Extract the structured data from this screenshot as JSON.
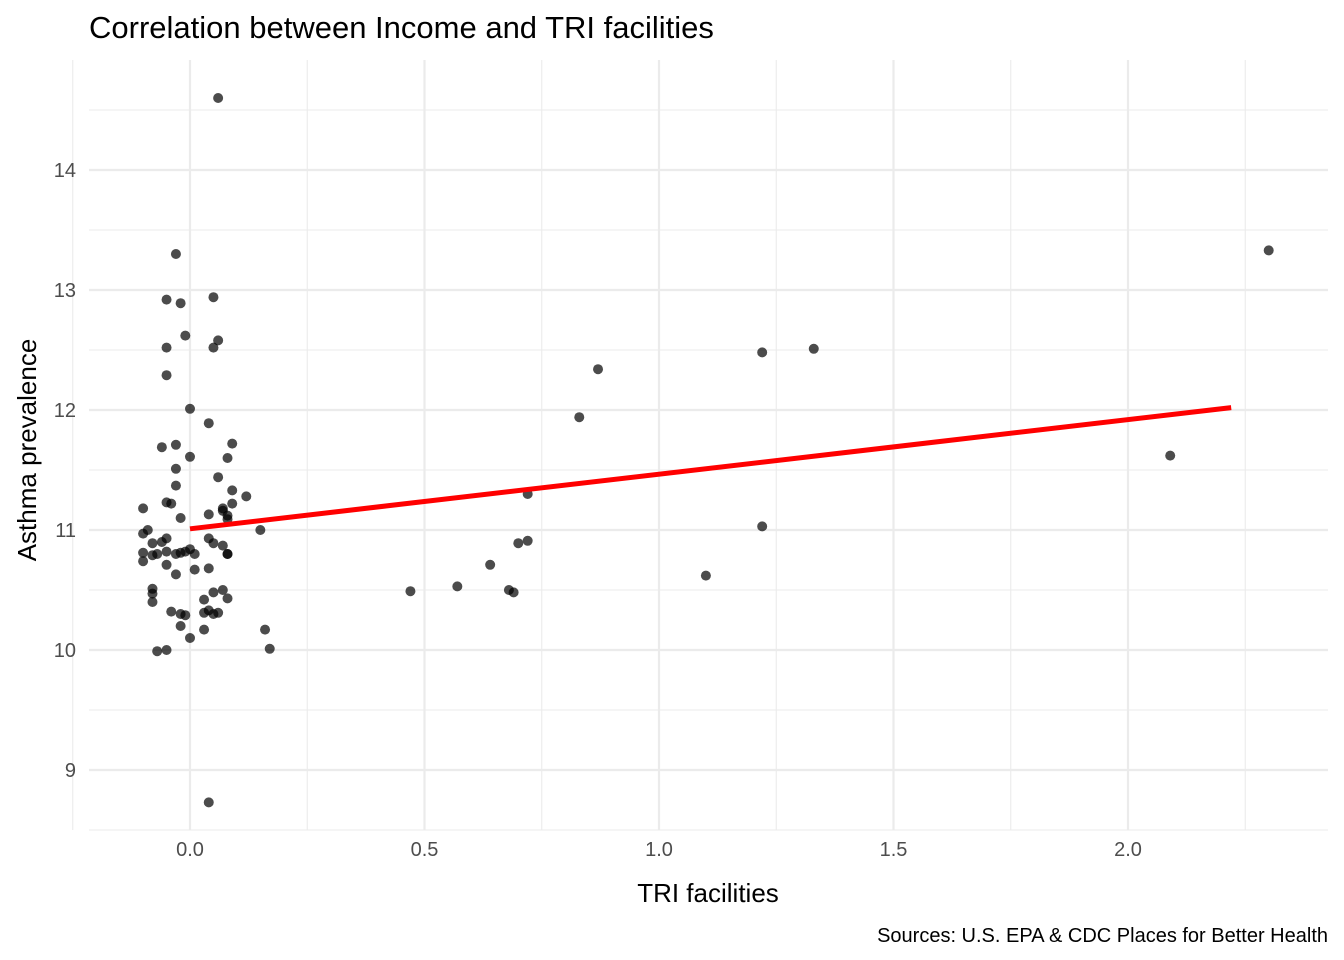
{
  "chart_data": {
    "type": "scatter",
    "title": "Correlation between Income and TRI facilities",
    "xlabel": "TRI facilities",
    "ylabel": "Asthma prevalence",
    "caption": "Sources: U.S. EPA & CDC Places for Better Health",
    "xlim": [
      -0.22,
      2.42
    ],
    "ylim": [
      8.5,
      14.8
    ],
    "x_ticks": [
      0.0,
      0.5,
      1.0,
      1.5,
      2.0
    ],
    "x_tick_labels": [
      "0.0",
      "0.5",
      "1.0",
      "1.5",
      "2.0"
    ],
    "x_minor_ticks": [
      -0.25,
      0.25,
      0.75,
      1.25,
      1.75,
      2.25
    ],
    "y_ticks": [
      9,
      10,
      11,
      12,
      13,
      14
    ],
    "y_tick_labels": [
      "9",
      "10",
      "11",
      "12",
      "13",
      "14"
    ],
    "y_minor_ticks": [
      8.5,
      9.5,
      10.5,
      11.5,
      12.5,
      13.5,
      14.5
    ],
    "grid": true,
    "point_color": "#000000",
    "point_opacity": 0.7,
    "trend_line": {
      "color": "#ff0000",
      "x": [
        0.0,
        2.22
      ],
      "y": [
        11.01,
        12.02
      ]
    },
    "x": [
      0.06,
      -0.03,
      0.05,
      -0.05,
      -0.02,
      0.05,
      -0.05,
      -0.01,
      0.06,
      -0.05,
      0.0,
      0.04,
      -0.06,
      -0.03,
      0.09,
      0.0,
      0.08,
      -0.03,
      0.06,
      -0.03,
      0.09,
      0.12,
      -0.05,
      -0.04,
      0.07,
      0.07,
      0.08,
      0.09,
      -0.1,
      0.04,
      -0.02,
      0.08,
      0.15,
      -0.09,
      -0.05,
      -0.1,
      0.04,
      -0.08,
      0.05,
      0.07,
      -0.06,
      0.08,
      -0.1,
      -0.05,
      -0.03,
      -0.02,
      0.0,
      -0.01,
      0.01,
      -0.08,
      0.08,
      -0.07,
      -0.1,
      0.04,
      -0.05,
      -0.03,
      0.01,
      -0.08,
      0.07,
      -0.08,
      0.05,
      0.08,
      -0.08,
      -0.04,
      0.03,
      -0.02,
      0.04,
      0.06,
      0.05,
      0.03,
      -0.01,
      -0.02,
      0.03,
      0.0,
      0.16,
      -0.07,
      -0.05,
      0.17,
      0.04,
      2.3,
      1.33,
      1.22,
      0.87,
      0.83,
      2.09,
      0.72,
      1.22,
      0.72,
      0.7,
      0.64,
      1.1,
      0.47,
      0.57,
      0.68,
      0.69
    ],
    "y": [
      14.6,
      13.3,
      12.94,
      12.92,
      12.89,
      12.52,
      12.52,
      12.62,
      12.58,
      12.29,
      12.01,
      11.89,
      11.69,
      11.71,
      11.72,
      11.61,
      11.6,
      11.51,
      11.44,
      11.37,
      11.33,
      11.28,
      11.23,
      11.22,
      11.18,
      11.16,
      11.12,
      11.22,
      11.18,
      11.13,
      11.1,
      11.09,
      11.0,
      11.0,
      10.93,
      10.97,
      10.93,
      10.89,
      10.89,
      10.87,
      10.9,
      10.8,
      10.81,
      10.82,
      10.8,
      10.81,
      10.84,
      10.82,
      10.8,
      10.79,
      10.8,
      10.8,
      10.74,
      10.68,
      10.71,
      10.63,
      10.67,
      10.51,
      10.5,
      10.47,
      10.48,
      10.43,
      10.4,
      10.32,
      10.42,
      10.3,
      10.33,
      10.31,
      10.3,
      10.31,
      10.29,
      10.2,
      10.17,
      10.1,
      10.17,
      9.99,
      10.0,
      10.01,
      8.73,
      13.33,
      12.51,
      12.48,
      12.34,
      11.94,
      11.62,
      11.3,
      11.03,
      10.91,
      10.89,
      10.71,
      10.62,
      10.49,
      10.53,
      10.5,
      10.48
    ]
  }
}
